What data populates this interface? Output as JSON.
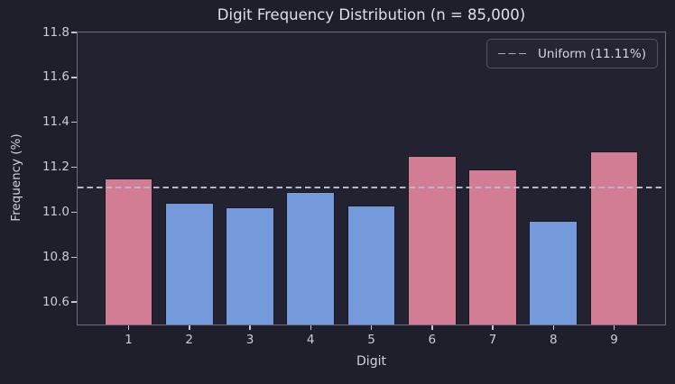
{
  "chart_data": {
    "type": "bar",
    "title": "Digit Frequency Distribution (n = 85,000)",
    "xlabel": "Digit",
    "ylabel": "Frequency (%)",
    "categories": [
      "1",
      "2",
      "3",
      "4",
      "5",
      "6",
      "7",
      "8",
      "9"
    ],
    "values": [
      11.15,
      11.04,
      11.02,
      11.09,
      11.03,
      11.25,
      11.19,
      10.96,
      11.27
    ],
    "bar_colors": [
      "#d27d94",
      "#749adb",
      "#749adb",
      "#749adb",
      "#749adb",
      "#d27d94",
      "#d27d94",
      "#749adb",
      "#d27d94"
    ],
    "color_meaning": {
      "above_uniform": "#d27d94",
      "below_uniform": "#749adb"
    },
    "reference_line": {
      "value": 11.11,
      "label": "Uniform (11.11%)",
      "color": "#b3b8ca",
      "style": "dashed"
    },
    "legend": {
      "position": "upper right",
      "entries": [
        {
          "label": "Uniform (11.11%)",
          "line_style": "dashed",
          "color": "#a9adc0"
        }
      ]
    },
    "ylim": [
      10.5,
      11.8
    ],
    "xlim": [
      0.16,
      9.84
    ],
    "yticks": [
      10.6,
      10.8,
      11.0,
      11.2,
      11.4,
      11.6,
      11.8
    ],
    "ytick_labels": [
      "10.6",
      "10.8",
      "11.0",
      "11.2",
      "11.4",
      "11.6",
      "11.8"
    ],
    "bar_width": 0.8,
    "grid": false,
    "theme": {
      "figure_bg": "#1f1f2b",
      "axes_bg": "#222230",
      "spine_color": "#6c6c7e",
      "text_color": "#dde0ec",
      "tick_color": "#c9ccdc"
    }
  }
}
